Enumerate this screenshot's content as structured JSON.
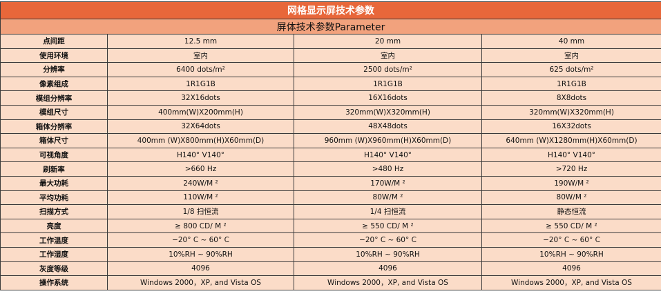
{
  "title": "网格显示屏技术参数",
  "subtitle": "屏体技术参数Parameter",
  "colors": {
    "title_bg": "#e8673a",
    "header_bg": "#f2a27d",
    "cell_bg": "#fbdcc8"
  },
  "rows": [
    {
      "label": "点间距",
      "values": [
        "12.5 mm",
        "20 mm",
        "40 mm"
      ]
    },
    {
      "label": "使用环境",
      "values": [
        "室内",
        "室内",
        "室内"
      ]
    },
    {
      "label": "分辨率",
      "values": [
        "6400 dots/m²",
        "2500 dots/m²",
        "625 dots/m²"
      ]
    },
    {
      "label": "像素组成",
      "values": [
        "1R1G1B",
        "1R1G1B",
        "1R1G1B"
      ]
    },
    {
      "label": "模组分辨率",
      "values": [
        "32X16dots",
        "16X16dots",
        "8X8dots"
      ]
    },
    {
      "label": "模组尺寸",
      "values": [
        "400mm(W)X200mm(H)",
        "320mm(W)X320mm(H)",
        "320mm(W)X320mm(H)"
      ]
    },
    {
      "label": "箱体分辨率",
      "values": [
        "32X64dots",
        "48X48dots",
        "16X32dots"
      ]
    },
    {
      "label": "箱体尺寸",
      "values": [
        "400mm (W)X800mm(H)X60mm(D)",
        "960mm (W)X960mm(H)X60mm(D)",
        "640mm (W)X1280mm(H)X60mm(D)"
      ]
    },
    {
      "label": "可视角度",
      "values": [
        "H140°  V140°",
        "H140°  V140°",
        "H140°  V140°"
      ]
    },
    {
      "label": "刷新率",
      "values": [
        ">660 Hz",
        ">480 Hz",
        ">720 Hz"
      ]
    },
    {
      "label": "最大功耗",
      "values": [
        "240W/M ²",
        "170W/M ²",
        "190W/M ²"
      ]
    },
    {
      "label": "平均功耗",
      "values": [
        "110W/M ²",
        "80W/M ²",
        "80W/M ²"
      ]
    },
    {
      "label": "扫描方式",
      "values": [
        "1/8 扫恒流",
        "1/4 扫恒流",
        "静态恒流"
      ]
    },
    {
      "label": "亮度",
      "values": [
        "≥ 800 CD/ M ²",
        "≥ 550 CD/ M ²",
        "≥ 550 CD/ M ²"
      ]
    },
    {
      "label": "工作温度",
      "values": [
        "−20°  C ~ 60°  C",
        "−20°  C ~ 60°  C",
        "−20°  C ~ 60°  C"
      ]
    },
    {
      "label": "工作湿度",
      "values": [
        "10%RH ~ 90%RH",
        "10%RH ~ 90%RH",
        "10%RH ~ 90%RH"
      ]
    },
    {
      "label": "灰度等级",
      "values": [
        "4096",
        "4096",
        "4096"
      ]
    },
    {
      "label": "操作系统",
      "values": [
        "Windows 2000，XP, and Vista OS",
        "Windows 2000，XP, and Vista OS",
        "Windows 2000，XP, and Vista OS"
      ]
    }
  ]
}
